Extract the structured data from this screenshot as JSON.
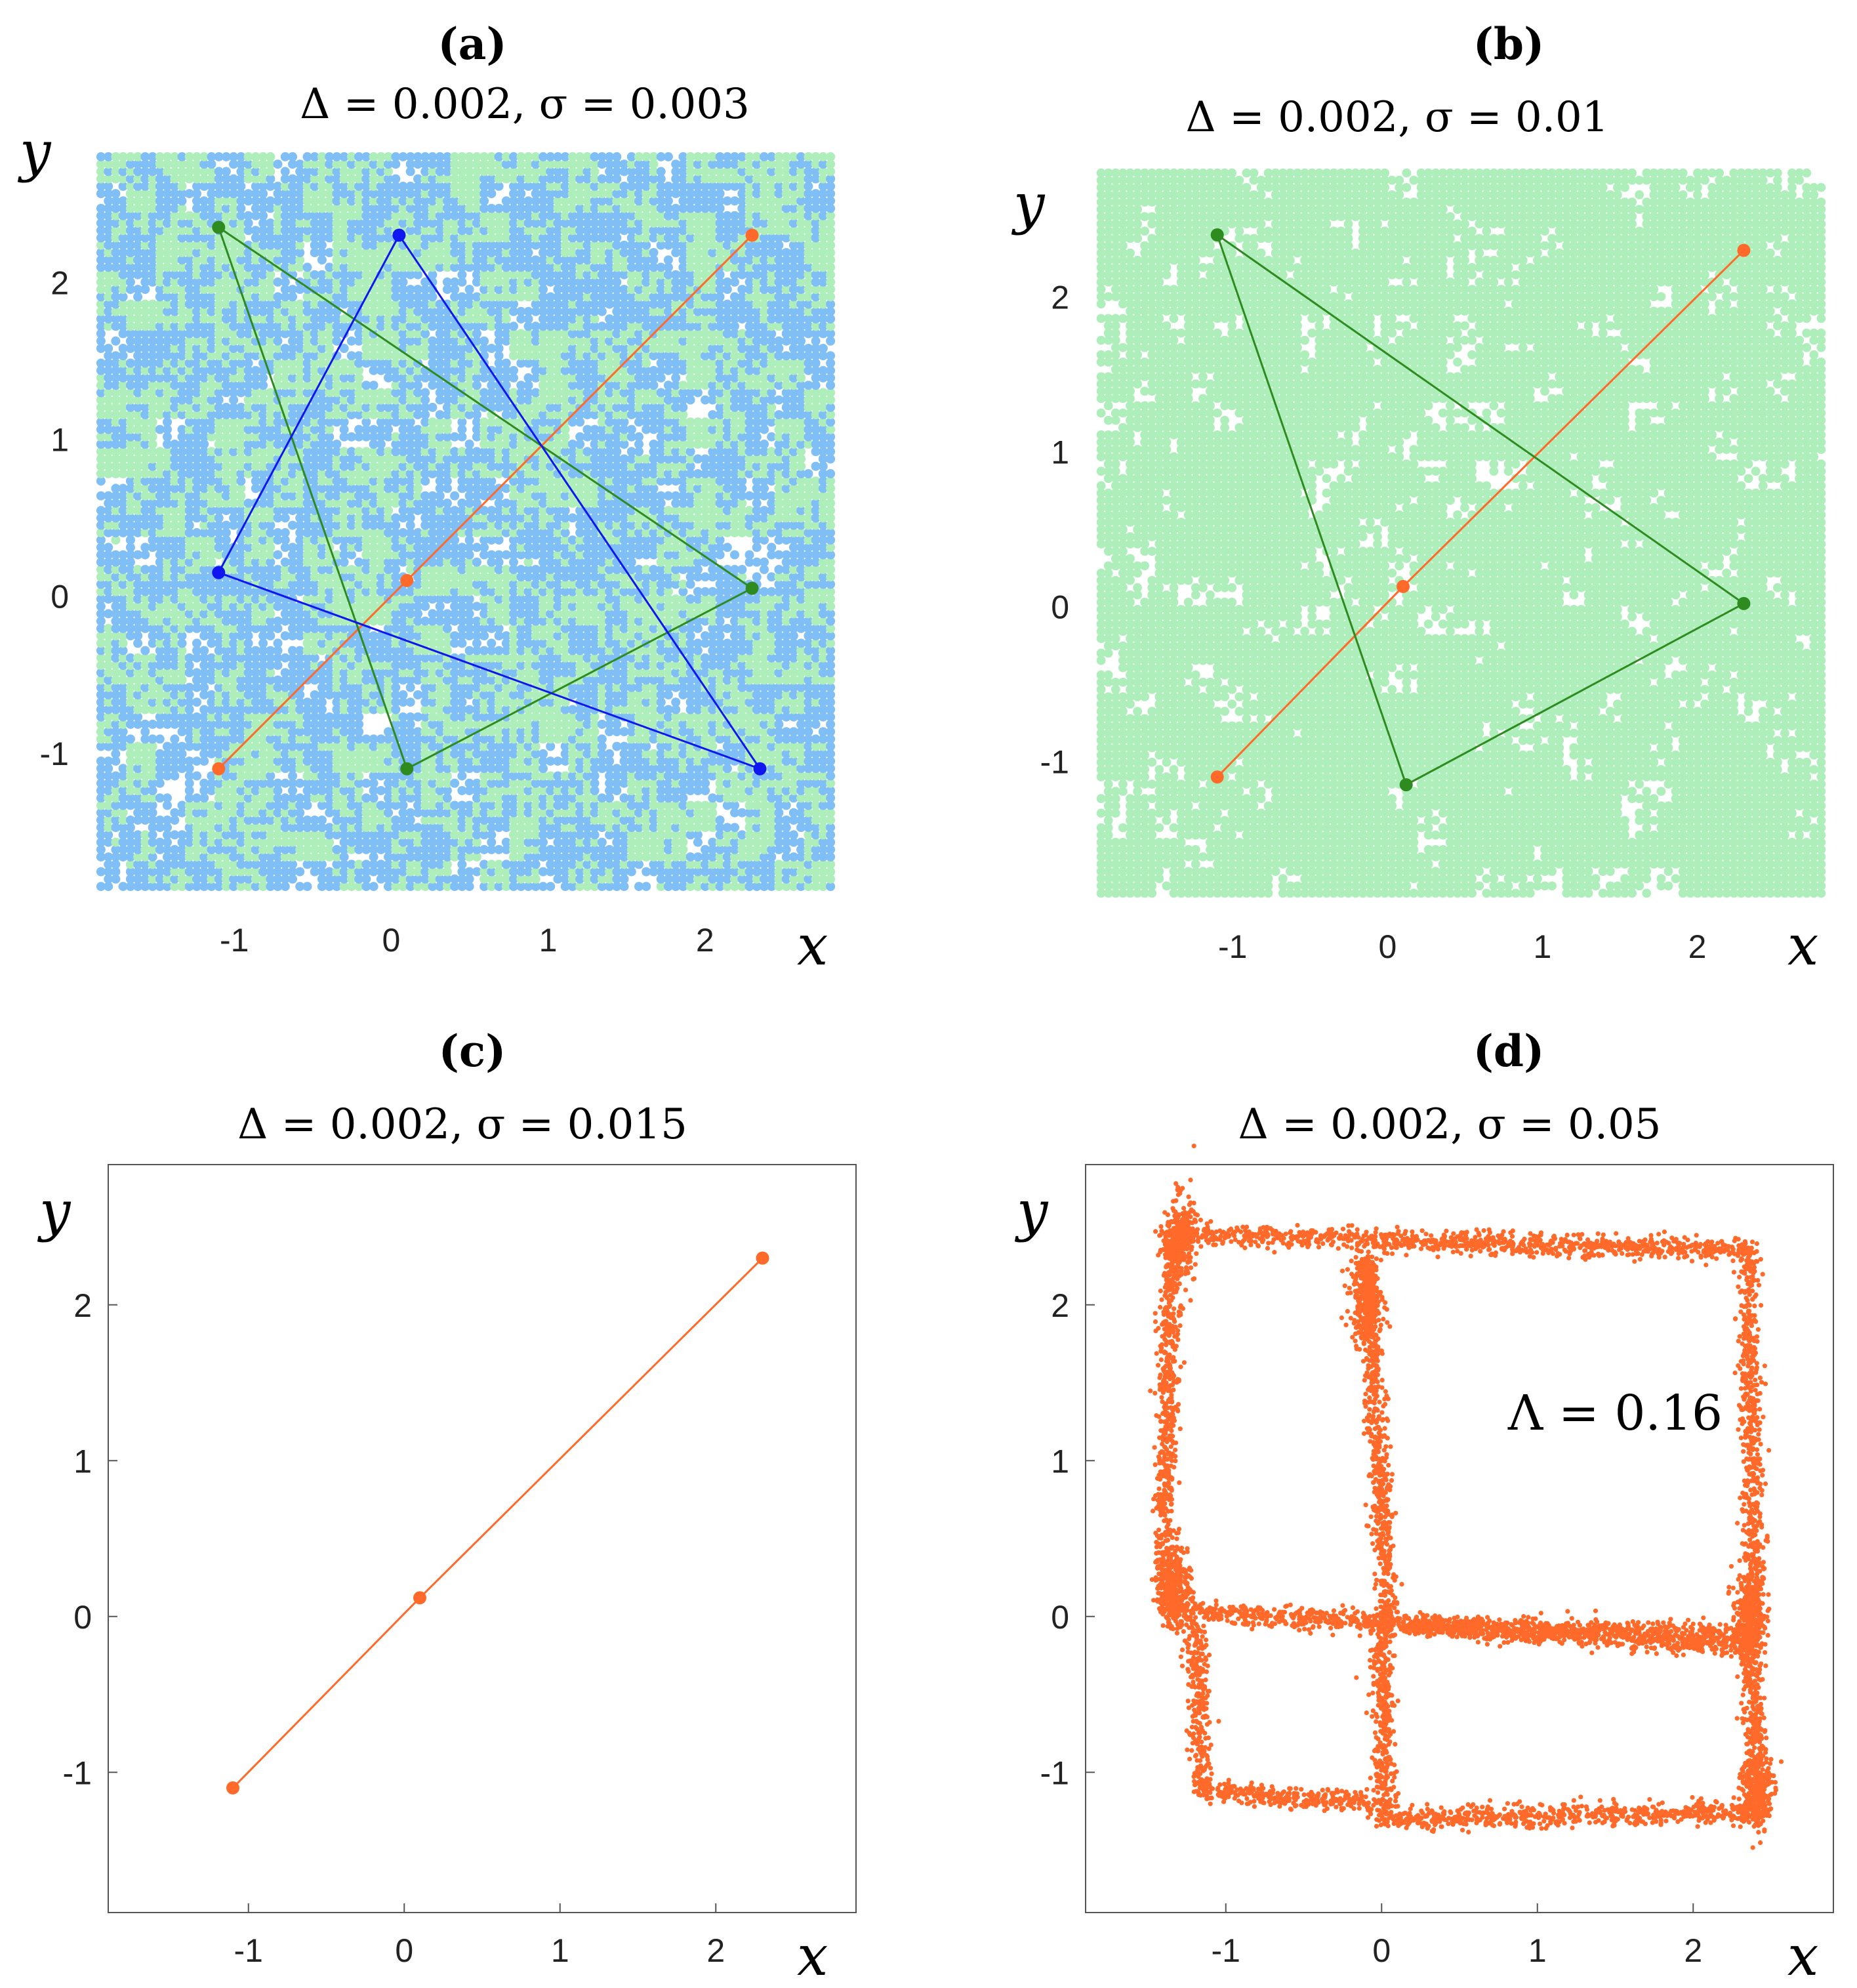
{
  "colors": {
    "green_fill": "#aeeebb",
    "blue_fill": "#7fbff5",
    "orange": "#ff6a2a",
    "green_line": "#2e8b1f",
    "blue_line": "#1016f0",
    "axis": "#555555"
  },
  "chart_data": [
    {
      "id": "a",
      "panel_label": "(a)",
      "title": "Δ = 0.002,  σ = 0.003",
      "type": "scatter",
      "xlabel": "x",
      "ylabel": "y",
      "xlim": [
        -1.95,
        2.9
      ],
      "ylim": [
        -1.95,
        2.9
      ],
      "xticks": [
        "-1",
        "0",
        "1",
        "2"
      ],
      "yticks": [
        "-1",
        "0",
        "1",
        "2"
      ],
      "axes_box": false,
      "basins": [
        {
          "name": "green basin",
          "color": "#aeeebb",
          "coverage": 0.45
        },
        {
          "name": "blue basin",
          "color": "#7fbff5",
          "coverage": 0.4
        }
      ],
      "series": [
        {
          "color": "#ff6a2a",
          "closed": false,
          "points": [
            [
              -1.1,
              -1.1
            ],
            [
              0.1,
              0.1
            ],
            [
              2.3,
              2.3
            ]
          ]
        },
        {
          "color": "#2e8b1f",
          "closed": true,
          "points": [
            [
              -1.1,
              2.35
            ],
            [
              2.3,
              0.05
            ],
            [
              0.1,
              -1.1
            ]
          ]
        },
        {
          "color": "#1016f0",
          "closed": true,
          "points": [
            [
              0.05,
              2.3
            ],
            [
              -1.1,
              0.15
            ],
            [
              2.35,
              -1.1
            ]
          ]
        }
      ]
    },
    {
      "id": "b",
      "panel_label": "(b)",
      "title": "Δ = 0.002,  σ = 0.01",
      "type": "scatter",
      "xlabel": "x",
      "ylabel": "y",
      "xlim": [
        -1.95,
        2.9
      ],
      "ylim": [
        -1.95,
        2.9
      ],
      "xticks": [
        "-1",
        "0",
        "1",
        "2"
      ],
      "yticks": [
        "-1",
        "0",
        "1",
        "2"
      ],
      "axes_box": false,
      "basins": [
        {
          "name": "green basin",
          "color": "#aeeebb",
          "coverage": 0.72
        }
      ],
      "series": [
        {
          "color": "#ff6a2a",
          "closed": false,
          "points": [
            [
              -1.1,
              -1.1
            ],
            [
              0.1,
              0.13
            ],
            [
              2.3,
              2.3
            ]
          ]
        },
        {
          "color": "#2e8b1f",
          "closed": true,
          "points": [
            [
              -1.1,
              2.4
            ],
            [
              2.3,
              0.02
            ],
            [
              0.12,
              -1.15
            ]
          ]
        }
      ]
    },
    {
      "id": "c",
      "panel_label": "(c)",
      "title": "Δ = 0.002,  σ = 0.015",
      "type": "line",
      "xlabel": "x",
      "ylabel": "y",
      "xlim": [
        -1.9,
        2.9
      ],
      "ylim": [
        -1.9,
        2.9
      ],
      "xticks": [
        "-1",
        "0",
        "1",
        "2"
      ],
      "yticks": [
        "-1",
        "0",
        "1",
        "2"
      ],
      "axes_box": true,
      "basins": [],
      "series": [
        {
          "color": "#ff6a2a",
          "closed": false,
          "points": [
            [
              -1.1,
              -1.1
            ],
            [
              0.1,
              0.12
            ],
            [
              2.3,
              2.3
            ]
          ]
        }
      ]
    },
    {
      "id": "d",
      "panel_label": "(d)",
      "title": "Δ = 0.002,  σ = 0.05",
      "type": "scatter",
      "xlabel": "x",
      "ylabel": "y",
      "xlim": [
        -1.9,
        2.9
      ],
      "ylim": [
        -1.9,
        2.9
      ],
      "xticks": [
        "-1",
        "0",
        "1",
        "2"
      ],
      "yticks": [
        "-1",
        "0",
        "1",
        "2"
      ],
      "axes_box": true,
      "annotation": "Λ = 0.16",
      "annotation_pos": [
        1.5,
        1.2
      ],
      "basins": [],
      "series": [],
      "attractor": {
        "color": "#ff6a2a",
        "segments": [
          [
            [
              -1.35,
              2.45
            ],
            [
              2.35,
              2.35
            ]
          ],
          [
            [
              -1.35,
              2.45
            ],
            [
              -1.4,
              0.05
            ]
          ],
          [
            [
              -0.1,
              2.3
            ],
            [
              0.05,
              -0.1
            ]
          ],
          [
            [
              2.35,
              2.35
            ],
            [
              2.4,
              -0.2
            ]
          ],
          [
            [
              -1.4,
              0.05
            ],
            [
              2.4,
              -0.2
            ]
          ],
          [
            [
              -1.2,
              -0.05
            ],
            [
              -1.15,
              -1.12
            ]
          ],
          [
            [
              -1.15,
              -1.12
            ],
            [
              0.0,
              -1.2
            ]
          ],
          [
            [
              0.0,
              -1.3
            ],
            [
              2.45,
              -1.25
            ]
          ],
          [
            [
              2.35,
              -0.2
            ],
            [
              2.45,
              -1.25
            ]
          ],
          [
            [
              0.0,
              -0.05
            ],
            [
              0.02,
              -1.3
            ]
          ],
          [
            [
              0.1,
              -0.05
            ],
            [
              2.35,
              -0.12
            ]
          ]
        ],
        "clusters": [
          [
            -1.32,
            0.2
          ],
          [
            -0.1,
            2.05
          ],
          [
            2.4,
            -1.1
          ],
          [
            -1.3,
            2.42
          ],
          [
            2.35,
            0.0
          ]
        ]
      }
    }
  ]
}
